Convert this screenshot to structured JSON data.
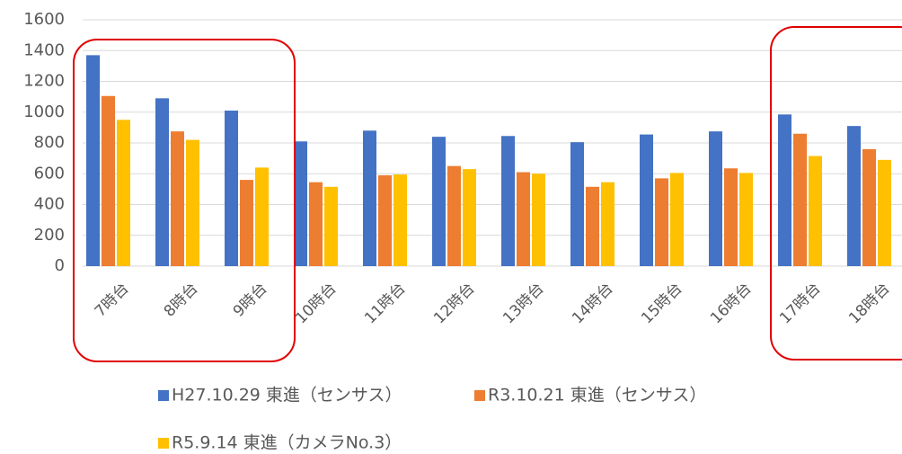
{
  "chart_data": {
    "type": "bar",
    "categories": [
      "7時台",
      "8時台",
      "9時台",
      "10時台",
      "11時台",
      "12時台",
      "13時台",
      "14時台",
      "15時台",
      "16時台",
      "17時台",
      "18時台"
    ],
    "series": [
      {
        "name": "H27.10.29 東進（センサス）",
        "color": "#4472c4",
        "values": [
          1370,
          1090,
          1010,
          810,
          880,
          840,
          845,
          805,
          855,
          875,
          985,
          910
        ]
      },
      {
        "name": "R3.10.21 東進（センサス）",
        "color": "#ed7d31",
        "values": [
          1105,
          875,
          560,
          545,
          590,
          650,
          610,
          515,
          570,
          635,
          860,
          760
        ]
      },
      {
        "name": "R5.9.14 東進（カメラNo.3）",
        "color": "#ffc000",
        "values": [
          950,
          820,
          640,
          515,
          595,
          630,
          600,
          545,
          605,
          605,
          715,
          690
        ]
      }
    ],
    "ylim": [
      0,
      1600
    ],
    "yticks": [
      0,
      200,
      400,
      600,
      800,
      1000,
      1200,
      1400,
      1600
    ],
    "grid": true
  }
}
